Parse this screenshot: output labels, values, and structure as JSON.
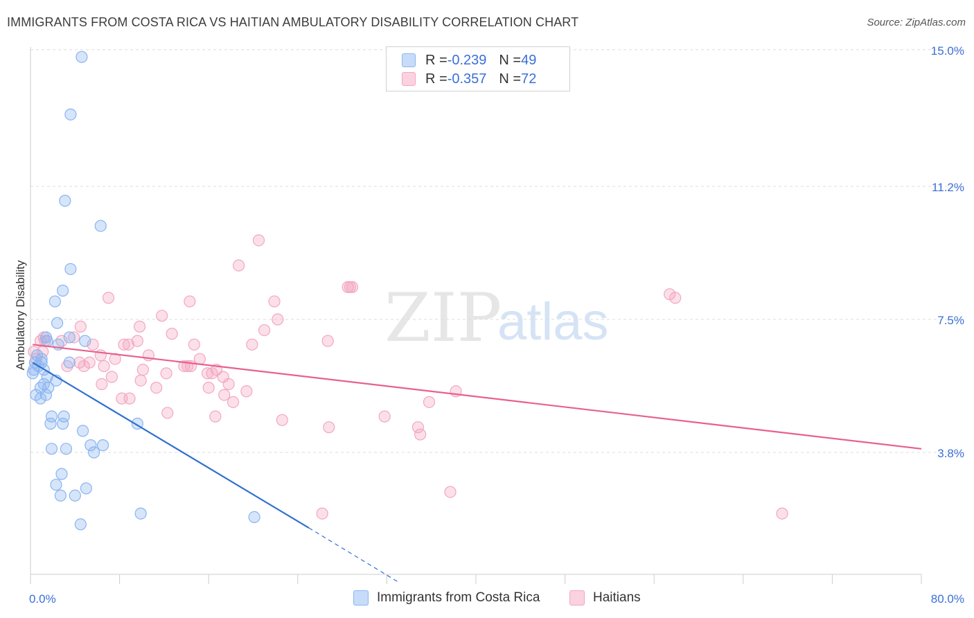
{
  "title": "IMMIGRANTS FROM COSTA RICA VS HAITIAN AMBULATORY DISABILITY CORRELATION CHART",
  "source": "Source: ZipAtlas.com",
  "watermark": {
    "zip": "ZIP",
    "atlas": "atlas"
  },
  "legend": {
    "rows": [
      {
        "r_label": "R = ",
        "r_value": "-0.239",
        "n_label": "N = ",
        "n_value": "49",
        "color": "#8ab4f0"
      },
      {
        "r_label": "R = ",
        "r_value": "-0.357",
        "n_label": "N = ",
        "n_value": "72",
        "color": "#f4a6bf"
      }
    ]
  },
  "bottom_legend": [
    {
      "label": "Immigrants from Costa Rica",
      "color": "#8ab4f0"
    },
    {
      "label": "Haitians",
      "color": "#f4a6bf"
    }
  ],
  "chart_data": {
    "type": "scatter",
    "title": "IMMIGRANTS FROM COSTA RICA VS HAITIAN AMBULATORY DISABILITY CORRELATION CHART",
    "xlabel": "",
    "ylabel": "Ambulatory Disability",
    "xlim": [
      0,
      80
    ],
    "ylim": [
      0,
      15.4
    ],
    "x_tick_labels": [
      "0.0%",
      "80.0%"
    ],
    "y_ticks": [
      {
        "value": 3.8,
        "label": "3.8%"
      },
      {
        "value": 7.5,
        "label": "7.5%"
      },
      {
        "value": 11.2,
        "label": "11.2%"
      },
      {
        "value": 15.0,
        "label": "15.0%"
      }
    ],
    "grid": "horizontal dashed",
    "legend_position": "top-center",
    "series": [
      {
        "name": "Immigrants from Costa Rica",
        "color": "#8ab4f0",
        "line_color": "#2f6fd0",
        "trend": {
          "x0": 0.2,
          "y0": 6.3,
          "x1": 25.0,
          "y1": 1.7,
          "dash_to_x": 33.0,
          "dash_to_y": 0.2
        },
        "points": [
          [
            4.6,
            14.8
          ],
          [
            3.6,
            13.2
          ],
          [
            3.1,
            10.8
          ],
          [
            6.3,
            10.1
          ],
          [
            3.6,
            8.9
          ],
          [
            2.9,
            8.3
          ],
          [
            2.2,
            8.0
          ],
          [
            2.4,
            7.4
          ],
          [
            1.4,
            7.0
          ],
          [
            2.5,
            6.8
          ],
          [
            4.9,
            6.9
          ],
          [
            3.5,
            7.0
          ],
          [
            0.6,
            6.5
          ],
          [
            1.0,
            6.4
          ],
          [
            0.4,
            6.3
          ],
          [
            0.7,
            6.2
          ],
          [
            1.2,
            6.1
          ],
          [
            0.3,
            6.1
          ],
          [
            1.5,
            5.9
          ],
          [
            2.3,
            5.8
          ],
          [
            1.2,
            5.7
          ],
          [
            1.6,
            5.6
          ],
          [
            0.9,
            5.6
          ],
          [
            0.5,
            5.4
          ],
          [
            1.4,
            5.4
          ],
          [
            0.9,
            5.3
          ],
          [
            3.5,
            6.3
          ],
          [
            9.6,
            4.6
          ],
          [
            1.9,
            4.8
          ],
          [
            3.0,
            4.8
          ],
          [
            2.9,
            4.6
          ],
          [
            1.8,
            4.6
          ],
          [
            4.7,
            4.4
          ],
          [
            5.4,
            4.0
          ],
          [
            6.5,
            4.0
          ],
          [
            5.7,
            3.8
          ],
          [
            1.9,
            3.9
          ],
          [
            3.2,
            3.9
          ],
          [
            2.8,
            3.2
          ],
          [
            2.3,
            2.9
          ],
          [
            5.0,
            2.8
          ],
          [
            2.7,
            2.6
          ],
          [
            4.0,
            2.6
          ],
          [
            9.9,
            2.1
          ],
          [
            4.5,
            1.8
          ],
          [
            20.1,
            2.0
          ],
          [
            1.0,
            6.3
          ],
          [
            0.2,
            6.0
          ],
          [
            1.5,
            6.9
          ]
        ]
      },
      {
        "name": "Haitians",
        "color": "#f4a6bf",
        "line_color": "#e8608d",
        "trend": {
          "x0": 0.2,
          "y0": 6.8,
          "x1": 80.0,
          "y1": 3.9
        },
        "points": [
          [
            20.5,
            9.7
          ],
          [
            18.7,
            9.0
          ],
          [
            28.7,
            8.4
          ],
          [
            28.5,
            8.4
          ],
          [
            57.4,
            8.2
          ],
          [
            7.0,
            8.1
          ],
          [
            14.3,
            8.0
          ],
          [
            21.9,
            8.0
          ],
          [
            11.8,
            7.6
          ],
          [
            22.2,
            7.5
          ],
          [
            4.5,
            7.3
          ],
          [
            9.8,
            7.3
          ],
          [
            21.0,
            7.2
          ],
          [
            12.7,
            7.1
          ],
          [
            1.2,
            7.0
          ],
          [
            3.9,
            7.0
          ],
          [
            1.3,
            6.9
          ],
          [
            2.8,
            6.9
          ],
          [
            26.7,
            6.9
          ],
          [
            9.6,
            6.9
          ],
          [
            8.8,
            6.8
          ],
          [
            5.6,
            6.8
          ],
          [
            8.4,
            6.8
          ],
          [
            14.7,
            6.8
          ],
          [
            19.9,
            6.8
          ],
          [
            0.9,
            6.9
          ],
          [
            0.3,
            6.6
          ],
          [
            1.1,
            6.6
          ],
          [
            6.3,
            6.5
          ],
          [
            10.6,
            6.5
          ],
          [
            7.6,
            6.4
          ],
          [
            15.2,
            6.4
          ],
          [
            4.4,
            6.3
          ],
          [
            5.3,
            6.3
          ],
          [
            4.8,
            6.2
          ],
          [
            13.8,
            6.2
          ],
          [
            14.4,
            6.2
          ],
          [
            14.1,
            6.2
          ],
          [
            6.6,
            6.2
          ],
          [
            10.1,
            6.1
          ],
          [
            3.3,
            6.2
          ],
          [
            16.7,
            6.1
          ],
          [
            12.2,
            6.0
          ],
          [
            15.9,
            6.0
          ],
          [
            16.3,
            6.0
          ],
          [
            17.3,
            5.9
          ],
          [
            7.3,
            5.9
          ],
          [
            6.4,
            5.7
          ],
          [
            9.9,
            5.8
          ],
          [
            17.8,
            5.7
          ],
          [
            11.3,
            5.6
          ],
          [
            16.0,
            5.6
          ],
          [
            19.4,
            5.5
          ],
          [
            17.4,
            5.4
          ],
          [
            8.2,
            5.3
          ],
          [
            8.9,
            5.3
          ],
          [
            18.2,
            5.2
          ],
          [
            38.2,
            5.5
          ],
          [
            35.8,
            5.2
          ],
          [
            12.3,
            4.9
          ],
          [
            16.6,
            4.8
          ],
          [
            31.8,
            4.8
          ],
          [
            22.6,
            4.7
          ],
          [
            26.8,
            4.5
          ],
          [
            35.0,
            4.3
          ],
          [
            34.8,
            4.5
          ],
          [
            37.7,
            2.7
          ],
          [
            26.2,
            2.1
          ],
          [
            67.5,
            2.1
          ],
          [
            57.9,
            8.1
          ],
          [
            0.5,
            6.4
          ],
          [
            28.9,
            8.4
          ]
        ]
      }
    ]
  }
}
